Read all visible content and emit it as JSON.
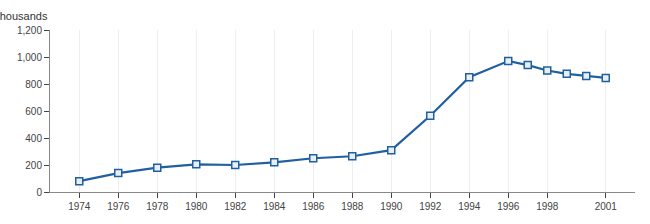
{
  "chart_data": {
    "type": "line",
    "ylabel": "Thousands",
    "x": [
      1974,
      1976,
      1978,
      1980,
      1982,
      1984,
      1986,
      1988,
      1990,
      1992,
      1994,
      1996,
      1997,
      1998,
      1999,
      2000,
      2001
    ],
    "values": [
      80,
      140,
      180,
      205,
      200,
      220,
      250,
      265,
      310,
      565,
      850,
      970,
      940,
      900,
      875,
      860,
      845
    ],
    "color": "#2060A0",
    "marker": "square",
    "xlim": [
      1972.5,
      2002.5
    ],
    "xticks": [
      1974,
      1976,
      1978,
      1980,
      1982,
      1984,
      1986,
      1988,
      1990,
      1992,
      1994,
      1996,
      1998,
      2001
    ],
    "ylim": [
      0,
      1200
    ],
    "yticks": [
      0,
      200,
      400,
      600,
      800,
      {
        "value": 1000,
        "label": "1,000"
      },
      {
        "value": 1200,
        "label": "1,200"
      }
    ],
    "grid": "x"
  }
}
